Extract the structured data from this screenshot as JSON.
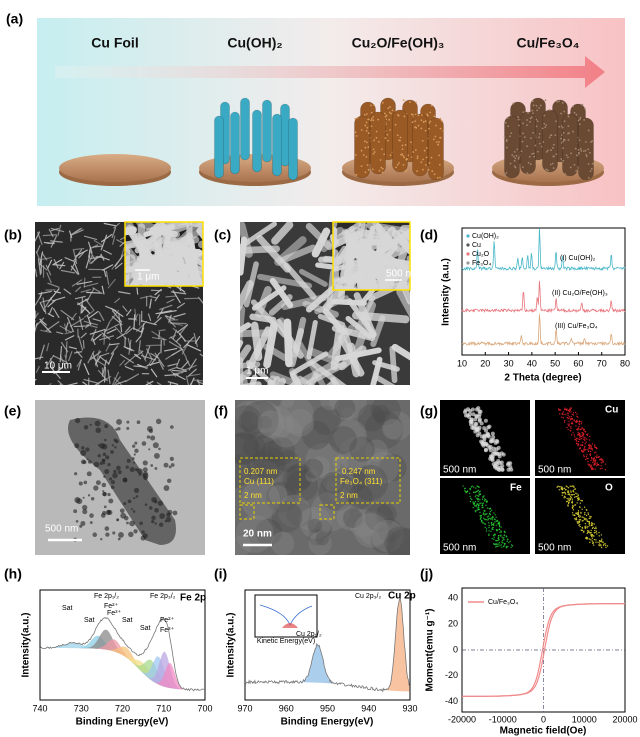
{
  "panel_labels": [
    "(a)",
    "(b)",
    "(c)",
    "(d)",
    "(e)",
    "(f)",
    "(g)",
    "(h)",
    "(i)",
    "(j)"
  ],
  "a": {
    "stages": [
      "Cu Foil",
      "Cu(OH)₂",
      "Cu₂O/Fe(OH)₃",
      "Cu/Fe₃O₄"
    ]
  },
  "b": {
    "scale": "10 μm",
    "inset_scale": "1 μm"
  },
  "c": {
    "scale": "1 μm",
    "inset_scale": "500 nm"
  },
  "d": {
    "legend": [
      "Cu(OH)₂",
      "Cu",
      "Cu₂O",
      "Fe₃O₄"
    ],
    "traces": [
      "(I) Cu(OH)₂",
      "(II) Cu₂O/Fe(OH)₃",
      "(III) Cu/Fe₃O₄"
    ],
    "y_label": "Intensity (a.u.)",
    "x_label": "2 Theta (degree)",
    "xticks": [
      10,
      20,
      30,
      40,
      50,
      60,
      70,
      80
    ]
  },
  "e": {
    "scale": "500 nm"
  },
  "f": {
    "spacing_1": "0.207 nm",
    "plane_1": "Cu (111)",
    "spacing_2": "0.247 nm",
    "plane_2": "Fe₃O₄ (311)",
    "inset_scale_1": "2 nm",
    "inset_scale_2": "2 nm",
    "scale": "20 nm"
  },
  "g": {
    "elements": [
      "Cu",
      "Fe",
      "O"
    ],
    "scales": [
      "500 nm",
      "500 nm",
      "500 nm",
      "500 nm"
    ]
  },
  "h": {
    "title": "Fe 2p",
    "annotations": [
      "Fe 2p₁/₂",
      "Fe 2p₃/₂",
      "Sat",
      "Sat",
      "Sat",
      "Sat",
      "Fe³⁺",
      "Fe²⁺",
      "Fe³⁺",
      "Fe²⁺"
    ],
    "y_label": "Intensity(a.u.)",
    "x_label": "Binding Energy(eV)",
    "xticks": [
      740,
      730,
      720,
      710,
      700
    ]
  },
  "i": {
    "title": "Cu 2p",
    "annotations": [
      "Cu 2p₁/₂",
      "Cu 2p₃/₂"
    ],
    "inset_x_label": "Kinetic Energy(eV)",
    "y_label": "Intensity(a.u.)",
    "x_label": "Binding Energy(eV)",
    "xticks": [
      970,
      960,
      950,
      940,
      930
    ]
  },
  "j": {
    "legend": "Cu/Fe₃O₄",
    "y_label": "Moment(emu g⁻¹)",
    "x_label": "Magnetic field(Oe)",
    "xticks": [
      -20000,
      -10000,
      0,
      10000,
      20000
    ],
    "yticks": [
      -40,
      -20,
      0,
      20,
      40
    ]
  }
}
